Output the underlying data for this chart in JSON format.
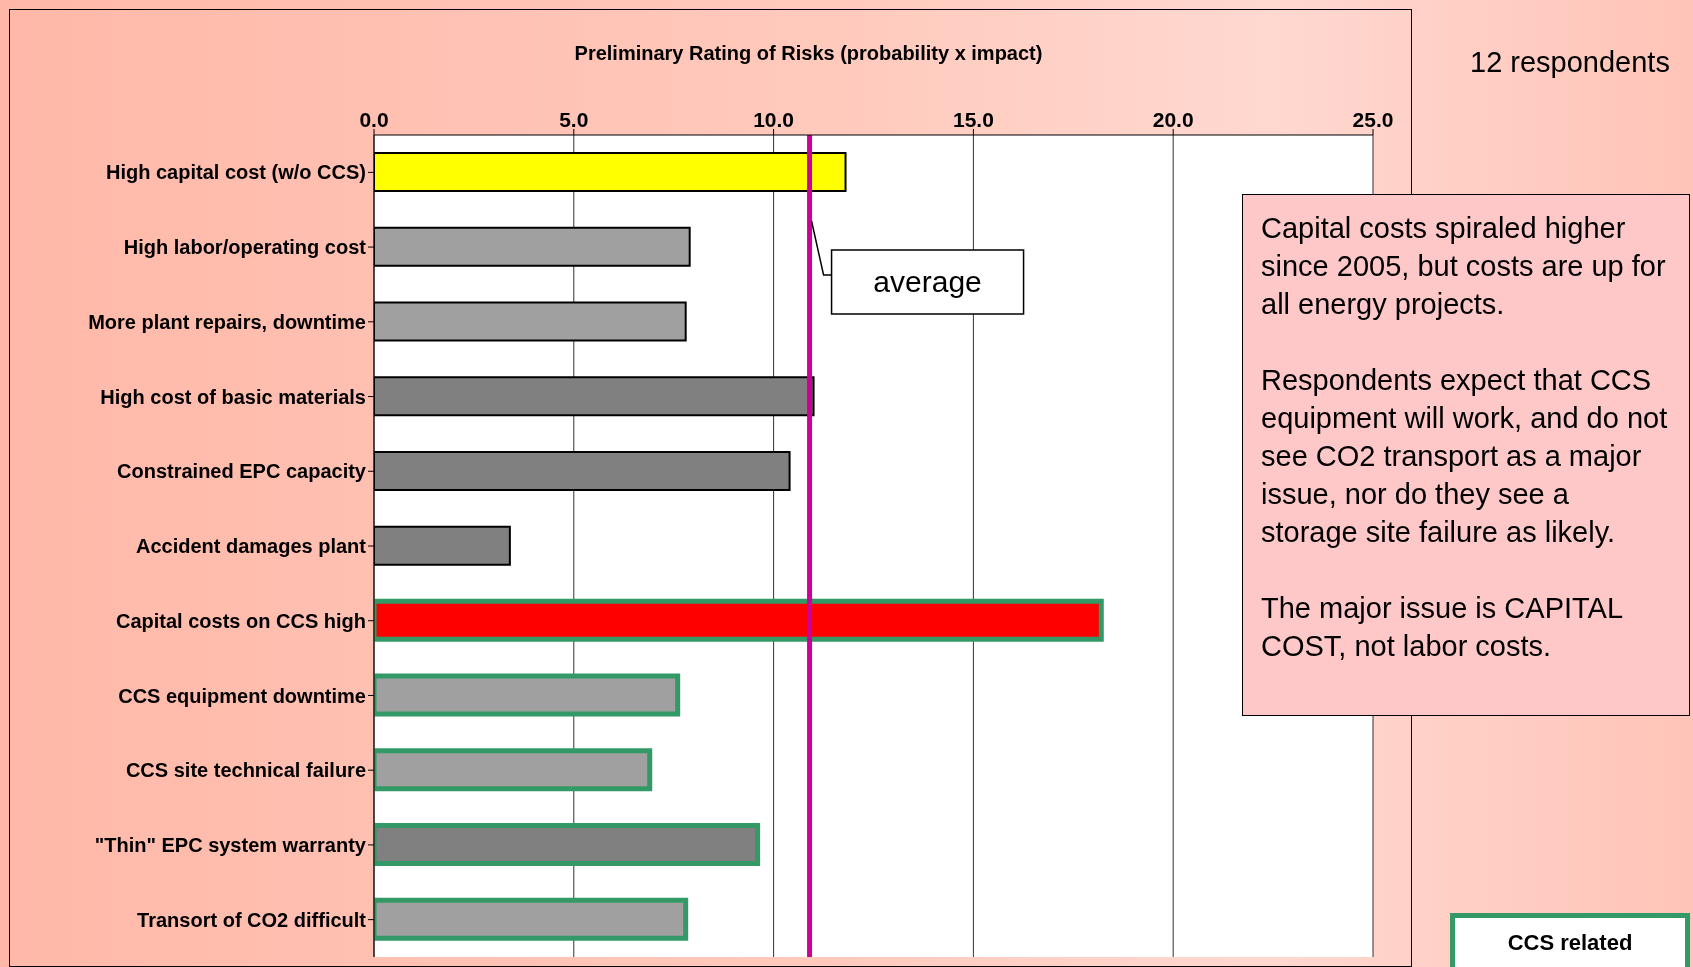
{
  "chart_data": {
    "type": "bar",
    "orientation": "horizontal",
    "stacked": true,
    "xlabel": "Preliminary Rating of Risks (probability x impact)",
    "categories": [
      "High capital cost (w/o CCS)",
      "High labor/operating cost",
      "More plant repairs, downtime",
      "High cost of basic materials",
      "Constrained EPC capacity",
      "Accident damages plant",
      "Capital costs on CCS high",
      "CCS equipment downtime",
      "CCS site technical failure",
      "\"Thin\" EPC system warranty",
      "Transort of CO2 difficult"
    ],
    "series": [
      {
        "values": [
          11.8,
          7.9,
          7.8,
          11.0,
          10.4,
          3.4,
          null,
          null,
          null,
          null,
          null
        ],
        "colors": [
          "#ffff00",
          "#a0a0a0",
          "#a0a0a0",
          "#808080",
          "#808080",
          "#808080",
          "#ff0000",
          "#a0a0a0",
          "#a0a0a0",
          "#808080",
          "#a0a0a0"
        ]
      },
      {
        "name": "CCS related",
        "color": "#339966",
        "values": [
          null,
          null,
          null,
          null,
          null,
          null,
          18.2,
          7.6,
          6.9,
          9.6,
          7.8
        ],
        "colors": [
          "#ffff00",
          "#a0a0a0",
          "#a0a0a0",
          "#808080",
          "#808080",
          "#808080",
          "#ff0000",
          "#a0a0a0",
          "#a0a0a0",
          "#808080",
          "#a0a0a0"
        ]
      }
    ],
    "xlim": [
      0,
      25
    ],
    "xticks": [
      {
        "value": 0,
        "label": "0.0"
      },
      {
        "value": 5,
        "label": "5.0"
      },
      {
        "value": 10,
        "label": "10.0"
      },
      {
        "value": 15,
        "label": "15.0"
      },
      {
        "value": 20,
        "label": "20.0"
      },
      {
        "value": 25,
        "label": "25.0"
      }
    ],
    "grid": "x",
    "legend": "bottom right",
    "ref_lines": [
      {
        "axis": "x",
        "value": 10.9,
        "label": "average",
        "color": "#cc0099"
      }
    ],
    "annotations": [
      "12 respondents",
      "Capital costs spiraled higher since 2005, but costs are up for all energy projects.",
      "Respondents expect that CCS equipment will work, and do not see CO2 transport as a major issue, nor do they see a storage site failure as likely.",
      "The major issue is CAPITAL COST, not labor costs."
    ]
  }
}
